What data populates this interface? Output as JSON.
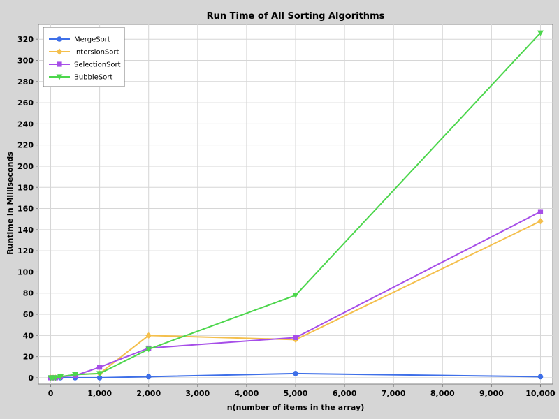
{
  "chart_data": {
    "type": "line",
    "title": "Run Time of All Sorting Algorithms",
    "xlabel": "n(number of items in the array)",
    "ylabel": "Runtime in Milliseconds",
    "xlim": [
      -250,
      10250
    ],
    "ylim": [
      -6,
      334
    ],
    "xticks": [
      0,
      1000,
      2000,
      3000,
      4000,
      5000,
      6000,
      7000,
      8000,
      9000,
      10000
    ],
    "xtick_labels": [
      "0",
      "1,000",
      "2,000",
      "3,000",
      "4,000",
      "5,000",
      "6,000",
      "7,000",
      "8,000",
      "9,000",
      "10,000"
    ],
    "yticks": [
      0,
      20,
      40,
      60,
      80,
      100,
      120,
      140,
      160,
      180,
      200,
      220,
      240,
      260,
      280,
      300,
      320
    ],
    "ytick_labels": [
      "0",
      "20",
      "40",
      "60",
      "80",
      "100",
      "120",
      "140",
      "160",
      "180",
      "200",
      "220",
      "240",
      "260",
      "280",
      "300",
      "320"
    ],
    "grid": true,
    "legend_position": "top-left",
    "x": [
      0,
      50,
      100,
      200,
      500,
      1000,
      2000,
      5000,
      10000
    ],
    "series": [
      {
        "name": "MergeSort",
        "values": [
          0,
          0,
          0,
          0,
          0,
          0,
          1,
          4,
          1
        ],
        "color": "#3e6fe8",
        "marker": "circle"
      },
      {
        "name": "IntersionSort",
        "values": [
          0,
          0,
          0,
          1,
          3,
          4,
          40,
          36,
          148
        ],
        "color": "#f4bf4c",
        "marker": "diamond"
      },
      {
        "name": "SelectionSort",
        "values": [
          0,
          0,
          0,
          1,
          2,
          10,
          28,
          38,
          157
        ],
        "color": "#a64ee8",
        "marker": "square"
      },
      {
        "name": "BubbleSort",
        "values": [
          0,
          0,
          0,
          1,
          3,
          4,
          27,
          78,
          326
        ],
        "color": "#4cd64c",
        "marker": "triangle-down"
      }
    ]
  }
}
